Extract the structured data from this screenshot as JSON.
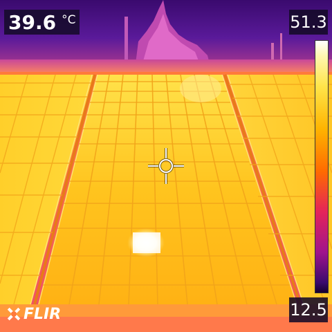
{
  "spot_readout": {
    "value": "39.6",
    "unit": "°C"
  },
  "scale": {
    "max": "51.3",
    "min": "12.5"
  },
  "brand": {
    "name": "FLIR"
  },
  "icons": {
    "crosshair": "crosshair-icon",
    "logo_mark": "flir-logo-icon"
  },
  "colors": {
    "palette": "iron",
    "hot": "#ffffff",
    "warm": "#ffd400",
    "mid": "#ff8a00",
    "cool": "#c01880",
    "cold": "#2a0a4a"
  }
}
